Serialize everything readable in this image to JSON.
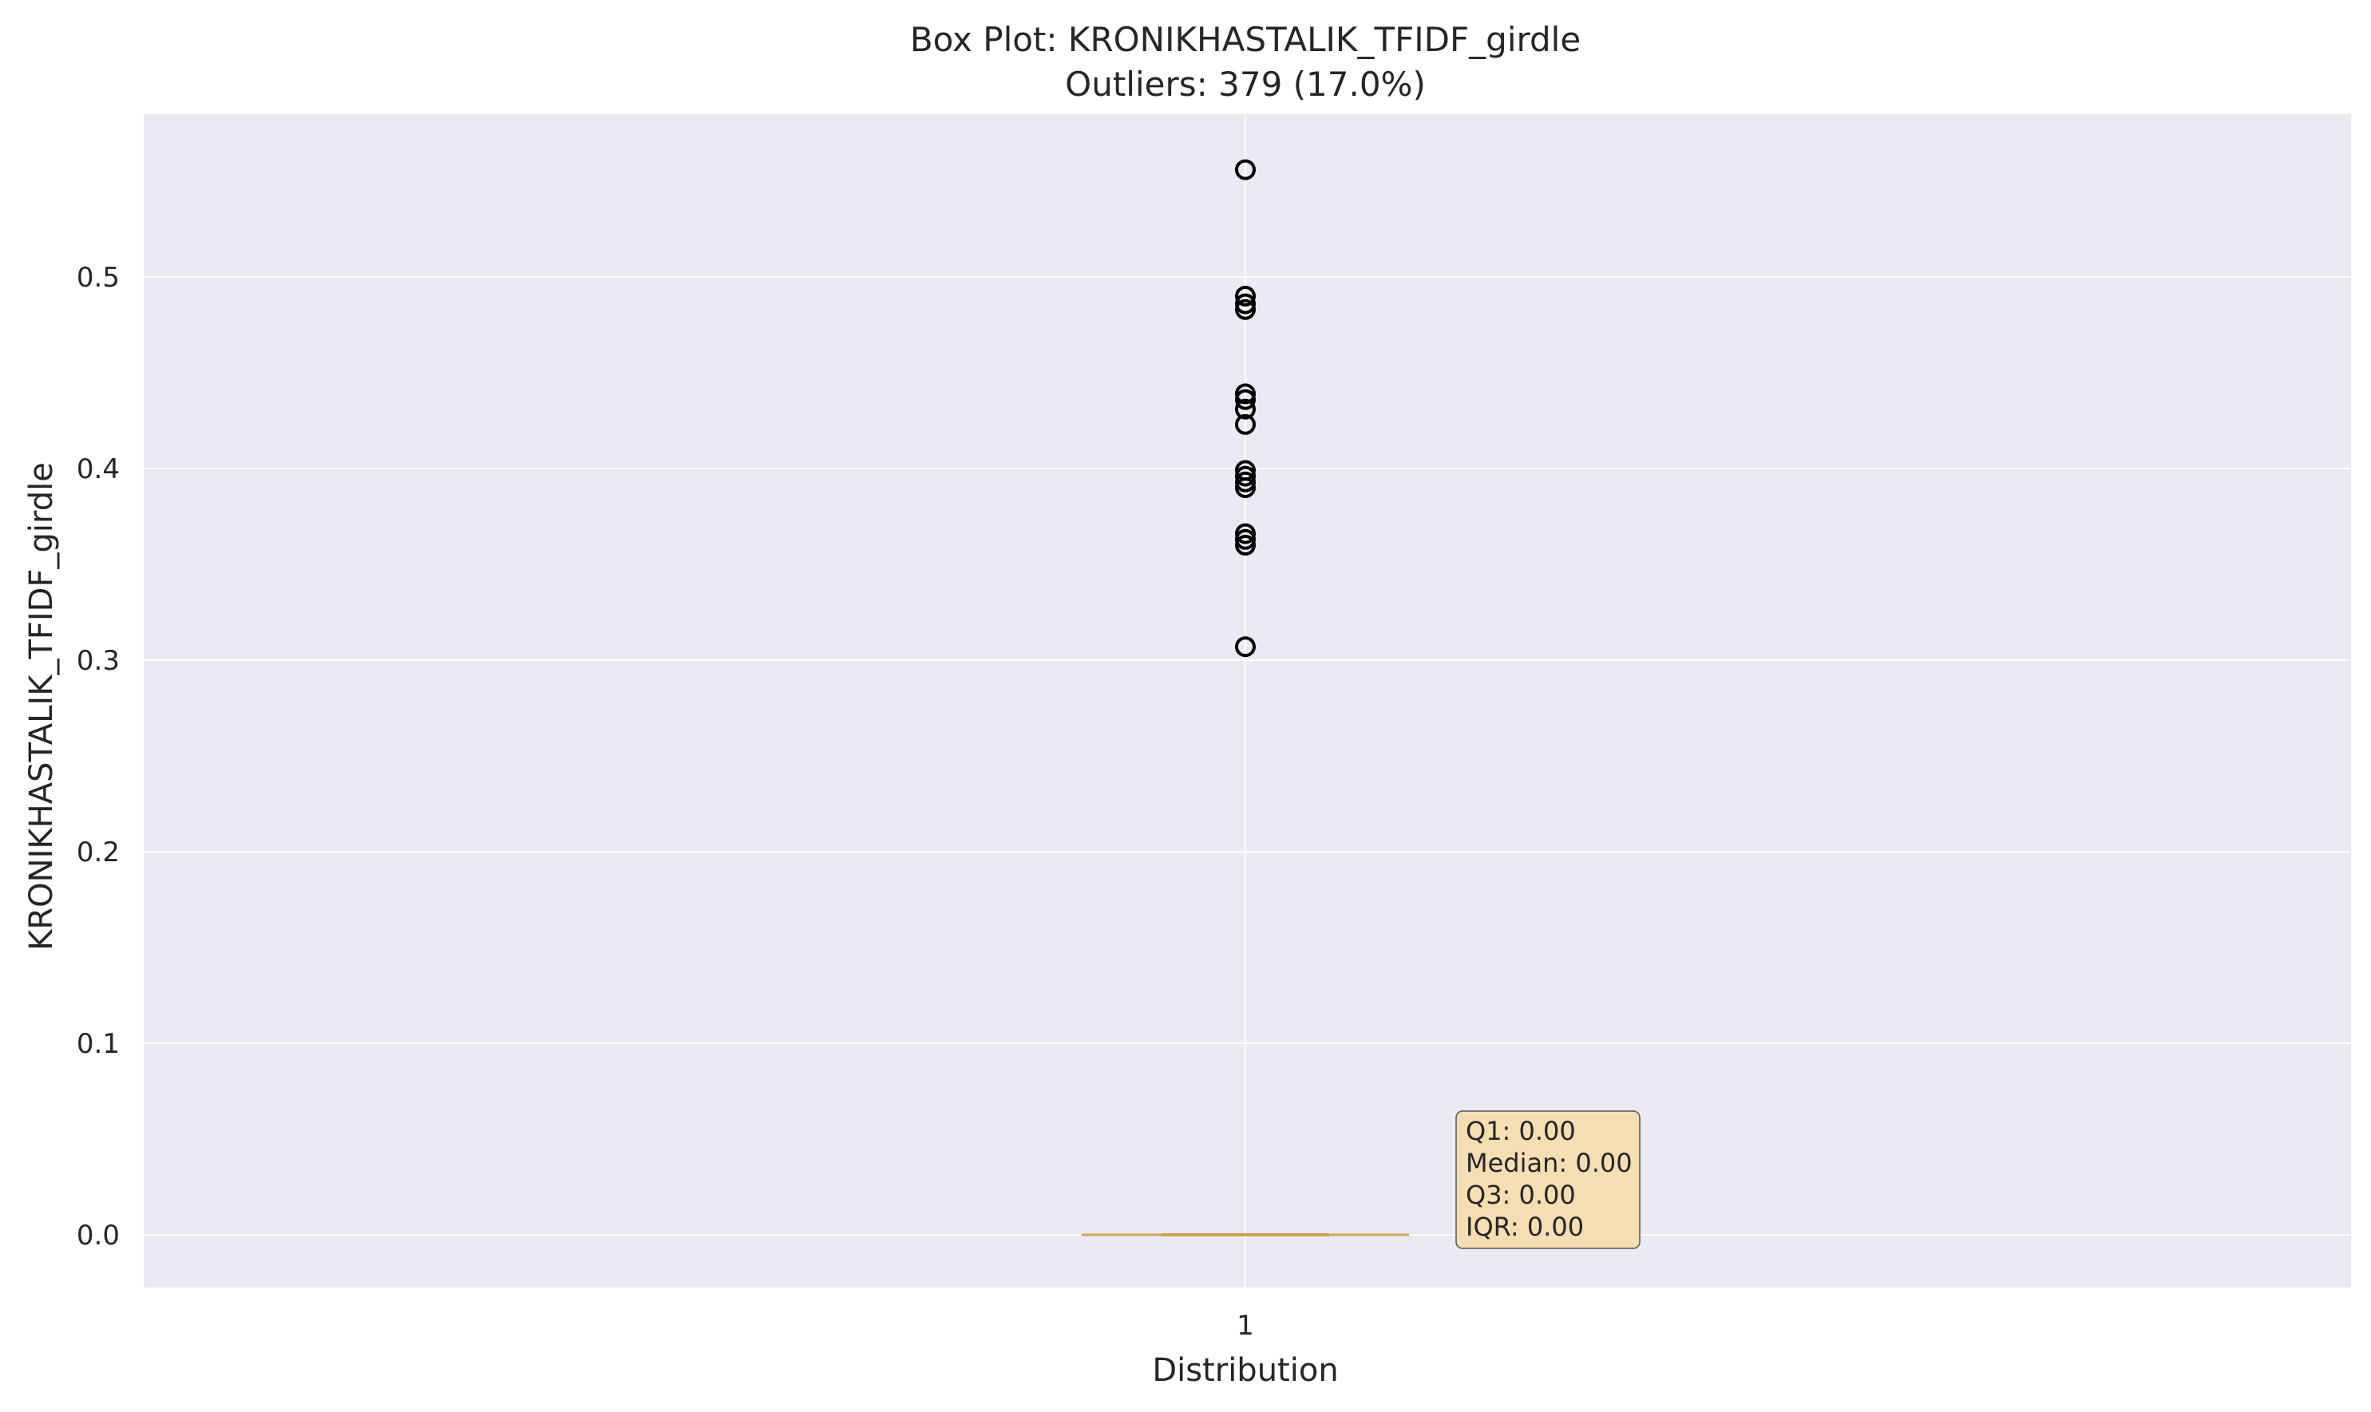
{
  "chart_data": {
    "type": "box",
    "title": "Box Plot: KRONIKHASTALIK_TFIDF_girdle",
    "subtitle": "Outliers: 379 (17.0%)",
    "xlabel": "Distribution",
    "ylabel": "KRONIKHASTALIK_TFIDF_girdle",
    "categories": [
      "1"
    ],
    "ylim": [
      -0.028,
      0.585
    ],
    "yticks": [
      0.0,
      0.1,
      0.2,
      0.3,
      0.4,
      0.5
    ],
    "ytick_labels": [
      "0.0",
      "0.1",
      "0.2",
      "0.3",
      "0.4",
      "0.5"
    ],
    "grid": true,
    "box": {
      "q1": 0.0,
      "median": 0.0,
      "q3": 0.0,
      "whisker_low": 0.0,
      "whisker_high": 0.0
    },
    "outliers": [
      0.307,
      0.36,
      0.363,
      0.366,
      0.39,
      0.393,
      0.396,
      0.399,
      0.423,
      0.431,
      0.436,
      0.439,
      0.483,
      0.486,
      0.49,
      0.556
    ],
    "stats_box": [
      "Q1: 0.00",
      "Median: 0.00",
      "Q3: 0.00",
      "IQR: 0.00"
    ],
    "colors": {
      "background": "#eaeaf2",
      "grid": "#ffffff",
      "median": "#c9a24a",
      "box": "#cfa85a",
      "outlier_stroke": "#000000",
      "stats_fill": "#f5deb3",
      "stats_stroke": "#555555"
    }
  }
}
